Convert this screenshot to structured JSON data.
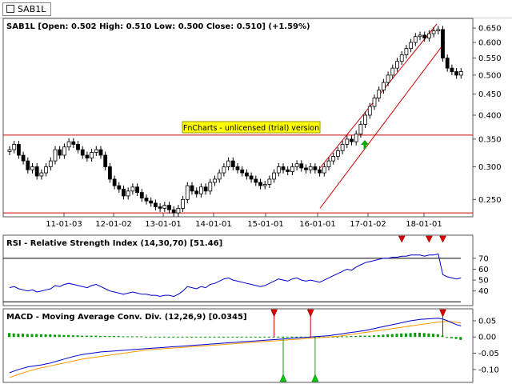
{
  "window": {
    "tab_label": "SAB1L"
  },
  "chart_data": [
    {
      "type": "candlestick",
      "title": "SAB1L [Open: 0.502  High: 0.510  Low: 0.500  Close: 0.510] (+1.59%)",
      "yscale": "log",
      "ylim": [
        0.228,
        0.665
      ],
      "y_ticks": [
        "0.650",
        "0.600",
        "0.550",
        "0.500",
        "0.450",
        "0.400",
        "0.350",
        "0.300",
        "0.250"
      ],
      "x_ticks": [
        "11-01-03",
        "12-01-02",
        "13-01-01",
        "14-01-01",
        "15-01-01",
        "16-01-01",
        "17-01-02",
        "18-01-01"
      ],
      "watermark": "FnCharts - unlicensed (trial) version",
      "horizontal_lines": [
        0.358,
        0.232
      ],
      "channel": {
        "lower_start": 0.238,
        "lower_end": 0.6,
        "upper_start": 0.298,
        "upper_end": 0.665
      },
      "signal": "buy-arrow",
      "colors": {
        "up": "#ffffff",
        "down": "#000000",
        "lines": "#cc0000",
        "arrow": "#00aa00",
        "watermark_bg": "#ffff00"
      },
      "closes": [
        0.33,
        0.34,
        0.32,
        0.31,
        0.295,
        0.3,
        0.285,
        0.29,
        0.3,
        0.31,
        0.33,
        0.32,
        0.335,
        0.345,
        0.34,
        0.33,
        0.32,
        0.315,
        0.325,
        0.33,
        0.32,
        0.3,
        0.28,
        0.27,
        0.265,
        0.255,
        0.262,
        0.268,
        0.26,
        0.252,
        0.248,
        0.245,
        0.24,
        0.238,
        0.242,
        0.236,
        0.232,
        0.238,
        0.25,
        0.27,
        0.262,
        0.258,
        0.268,
        0.262,
        0.275,
        0.28,
        0.29,
        0.3,
        0.31,
        0.3,
        0.295,
        0.29,
        0.285,
        0.28,
        0.275,
        0.27,
        0.272,
        0.28,
        0.29,
        0.3,
        0.295,
        0.292,
        0.3,
        0.305,
        0.298,
        0.295,
        0.3,
        0.295,
        0.29,
        0.3,
        0.31,
        0.318,
        0.328,
        0.34,
        0.35,
        0.345,
        0.36,
        0.38,
        0.4,
        0.42,
        0.44,
        0.46,
        0.48,
        0.5,
        0.52,
        0.54,
        0.56,
        0.58,
        0.6,
        0.62,
        0.625,
        0.615,
        0.63,
        0.64,
        0.645,
        0.55,
        0.52,
        0.51,
        0.5,
        0.51
      ]
    },
    {
      "type": "line",
      "title": "RSI - Relative Strength Index (14,30,70) [51.46]",
      "ylim": [
        28,
        78
      ],
      "y_ticks": [
        "70",
        "60",
        "50",
        "40"
      ],
      "reference_lines": [
        70,
        30
      ],
      "series": [
        {
          "name": "",
          "color": "#0000cc",
          "values": [
            43,
            44,
            42,
            41,
            40,
            41,
            39,
            40,
            41,
            42,
            45,
            44,
            46,
            47,
            46,
            45,
            44,
            43,
            45,
            46,
            44,
            42,
            40,
            39,
            38,
            37,
            38,
            39,
            38,
            37,
            37,
            36,
            36,
            35,
            36,
            36,
            35,
            37,
            40,
            44,
            43,
            42,
            44,
            43,
            46,
            47,
            49,
            51,
            52,
            50,
            49,
            48,
            47,
            46,
            45,
            44,
            45,
            47,
            49,
            51,
            50,
            49,
            51,
            52,
            50,
            49,
            50,
            49,
            48,
            50,
            52,
            54,
            56,
            58,
            60,
            59,
            62,
            64,
            66,
            67,
            68,
            69,
            70,
            70,
            71,
            71,
            72,
            72,
            73,
            73,
            73,
            72,
            73,
            73,
            74,
            55,
            53,
            52,
            51,
            52
          ]
        }
      ],
      "signals": [
        {
          "index": 86,
          "type": "sell"
        },
        {
          "index": 92,
          "type": "sell"
        },
        {
          "index": 95,
          "type": "sell"
        }
      ]
    },
    {
      "type": "line",
      "title": "MACD - Moving Average Conv. Div. (12,26,9) [0.0345]",
      "ylim": [
        -0.135,
        0.072
      ],
      "y_ticks": [
        "0.05",
        "0.00",
        "-0.05",
        "-0.10"
      ],
      "series": [
        {
          "name": "",
          "color": "#0000cc",
          "values": [
            -0.11,
            -0.105,
            -0.1,
            -0.096,
            -0.092,
            -0.09,
            -0.088,
            -0.086,
            -0.083,
            -0.08,
            -0.076,
            -0.072,
            -0.068,
            -0.064,
            -0.06,
            -0.057,
            -0.054,
            -0.052,
            -0.05,
            -0.048,
            -0.046,
            -0.045,
            -0.044,
            -0.043,
            -0.042,
            -0.041,
            -0.04,
            -0.039,
            -0.038,
            -0.037,
            -0.036,
            -0.035,
            -0.034,
            -0.033,
            -0.032,
            -0.031,
            -0.03,
            -0.029,
            -0.028,
            -0.027,
            -0.026,
            -0.025,
            -0.024,
            -0.023,
            -0.022,
            -0.021,
            -0.02,
            -0.019,
            -0.018,
            -0.017,
            -0.016,
            -0.015,
            -0.014,
            -0.013,
            -0.012,
            -0.011,
            -0.01,
            -0.009,
            -0.008,
            -0.007,
            -0.006,
            -0.005,
            -0.004,
            -0.003,
            -0.002,
            -0.001,
            0.0,
            0.001,
            0.002,
            0.003,
            0.004,
            0.006,
            0.008,
            0.01,
            0.012,
            0.014,
            0.016,
            0.018,
            0.02,
            0.023,
            0.026,
            0.029,
            0.032,
            0.035,
            0.038,
            0.041,
            0.044,
            0.047,
            0.05,
            0.052,
            0.054,
            0.055,
            0.056,
            0.057,
            0.058,
            0.055,
            0.05,
            0.044,
            0.038,
            0.034
          ]
        },
        {
          "name": "",
          "color": "#ff9900",
          "values": [
            -0.125,
            -0.12,
            -0.115,
            -0.11,
            -0.106,
            -0.102,
            -0.098,
            -0.095,
            -0.092,
            -0.089,
            -0.086,
            -0.083,
            -0.08,
            -0.077,
            -0.074,
            -0.071,
            -0.068,
            -0.066,
            -0.064,
            -0.062,
            -0.06,
            -0.058,
            -0.056,
            -0.054,
            -0.052,
            -0.05,
            -0.048,
            -0.046,
            -0.044,
            -0.042,
            -0.04,
            -0.039,
            -0.038,
            -0.037,
            -0.036,
            -0.035,
            -0.034,
            -0.033,
            -0.032,
            -0.031,
            -0.03,
            -0.029,
            -0.028,
            -0.027,
            -0.026,
            -0.025,
            -0.024,
            -0.023,
            -0.022,
            -0.021,
            -0.02,
            -0.019,
            -0.018,
            -0.017,
            -0.016,
            -0.015,
            -0.014,
            -0.013,
            -0.012,
            -0.011,
            -0.01,
            -0.009,
            -0.008,
            -0.007,
            -0.006,
            -0.005,
            -0.004,
            -0.003,
            -0.002,
            -0.001,
            0.0,
            0.001,
            0.002,
            0.004,
            0.006,
            0.008,
            0.01,
            0.012,
            0.014,
            0.016,
            0.018,
            0.02,
            0.022,
            0.024,
            0.026,
            0.028,
            0.03,
            0.032,
            0.034,
            0.036,
            0.038,
            0.04,
            0.042,
            0.044,
            0.046,
            0.047,
            0.048,
            0.047,
            0.045,
            0.043
          ]
        }
      ],
      "histogram": [
        0.012,
        0.011,
        0.01,
        0.01,
        0.009,
        0.009,
        0.009,
        0.008,
        0.008,
        0.008,
        0.007,
        0.007,
        0.006,
        0.006,
        0.005,
        0.005,
        0.004,
        0.004,
        0.004,
        0.004,
        0.003,
        0.003,
        0.003,
        0.003,
        0.003,
        0.002,
        0.002,
        0.002,
        0.002,
        0.002,
        0.001,
        0.001,
        0.001,
        0.001,
        0.001,
        0.001,
        0.001,
        0.001,
        0.001,
        0.001,
        0.001,
        0.001,
        0.001,
        0.001,
        0.001,
        0.001,
        0.001,
        0.001,
        0.001,
        0.001,
        0.001,
        0.001,
        0.001,
        0.001,
        0.001,
        0.001,
        0.001,
        0.001,
        0.001,
        0.001,
        0.001,
        0.001,
        0.001,
        0.001,
        0.001,
        0.001,
        0.001,
        0.001,
        0.001,
        0.001,
        0.001,
        0.001,
        0.001,
        0.002,
        0.002,
        0.003,
        0.003,
        0.004,
        0.004,
        0.004,
        0.005,
        0.006,
        0.007,
        0.008,
        0.009,
        0.01,
        0.011,
        0.011,
        0.012,
        0.013,
        0.013,
        0.012,
        0.011,
        0.01,
        0.008,
        0.004,
        -0.002,
        -0.004,
        -0.006,
        -0.009
      ],
      "histogram_color": "#009900",
      "signals": [
        {
          "index": 58,
          "type": "sell"
        },
        {
          "index": 66,
          "type": "sell"
        },
        {
          "index": 95,
          "type": "sell"
        },
        {
          "index": 60,
          "type": "buy"
        },
        {
          "index": 67,
          "type": "buy"
        }
      ]
    }
  ]
}
